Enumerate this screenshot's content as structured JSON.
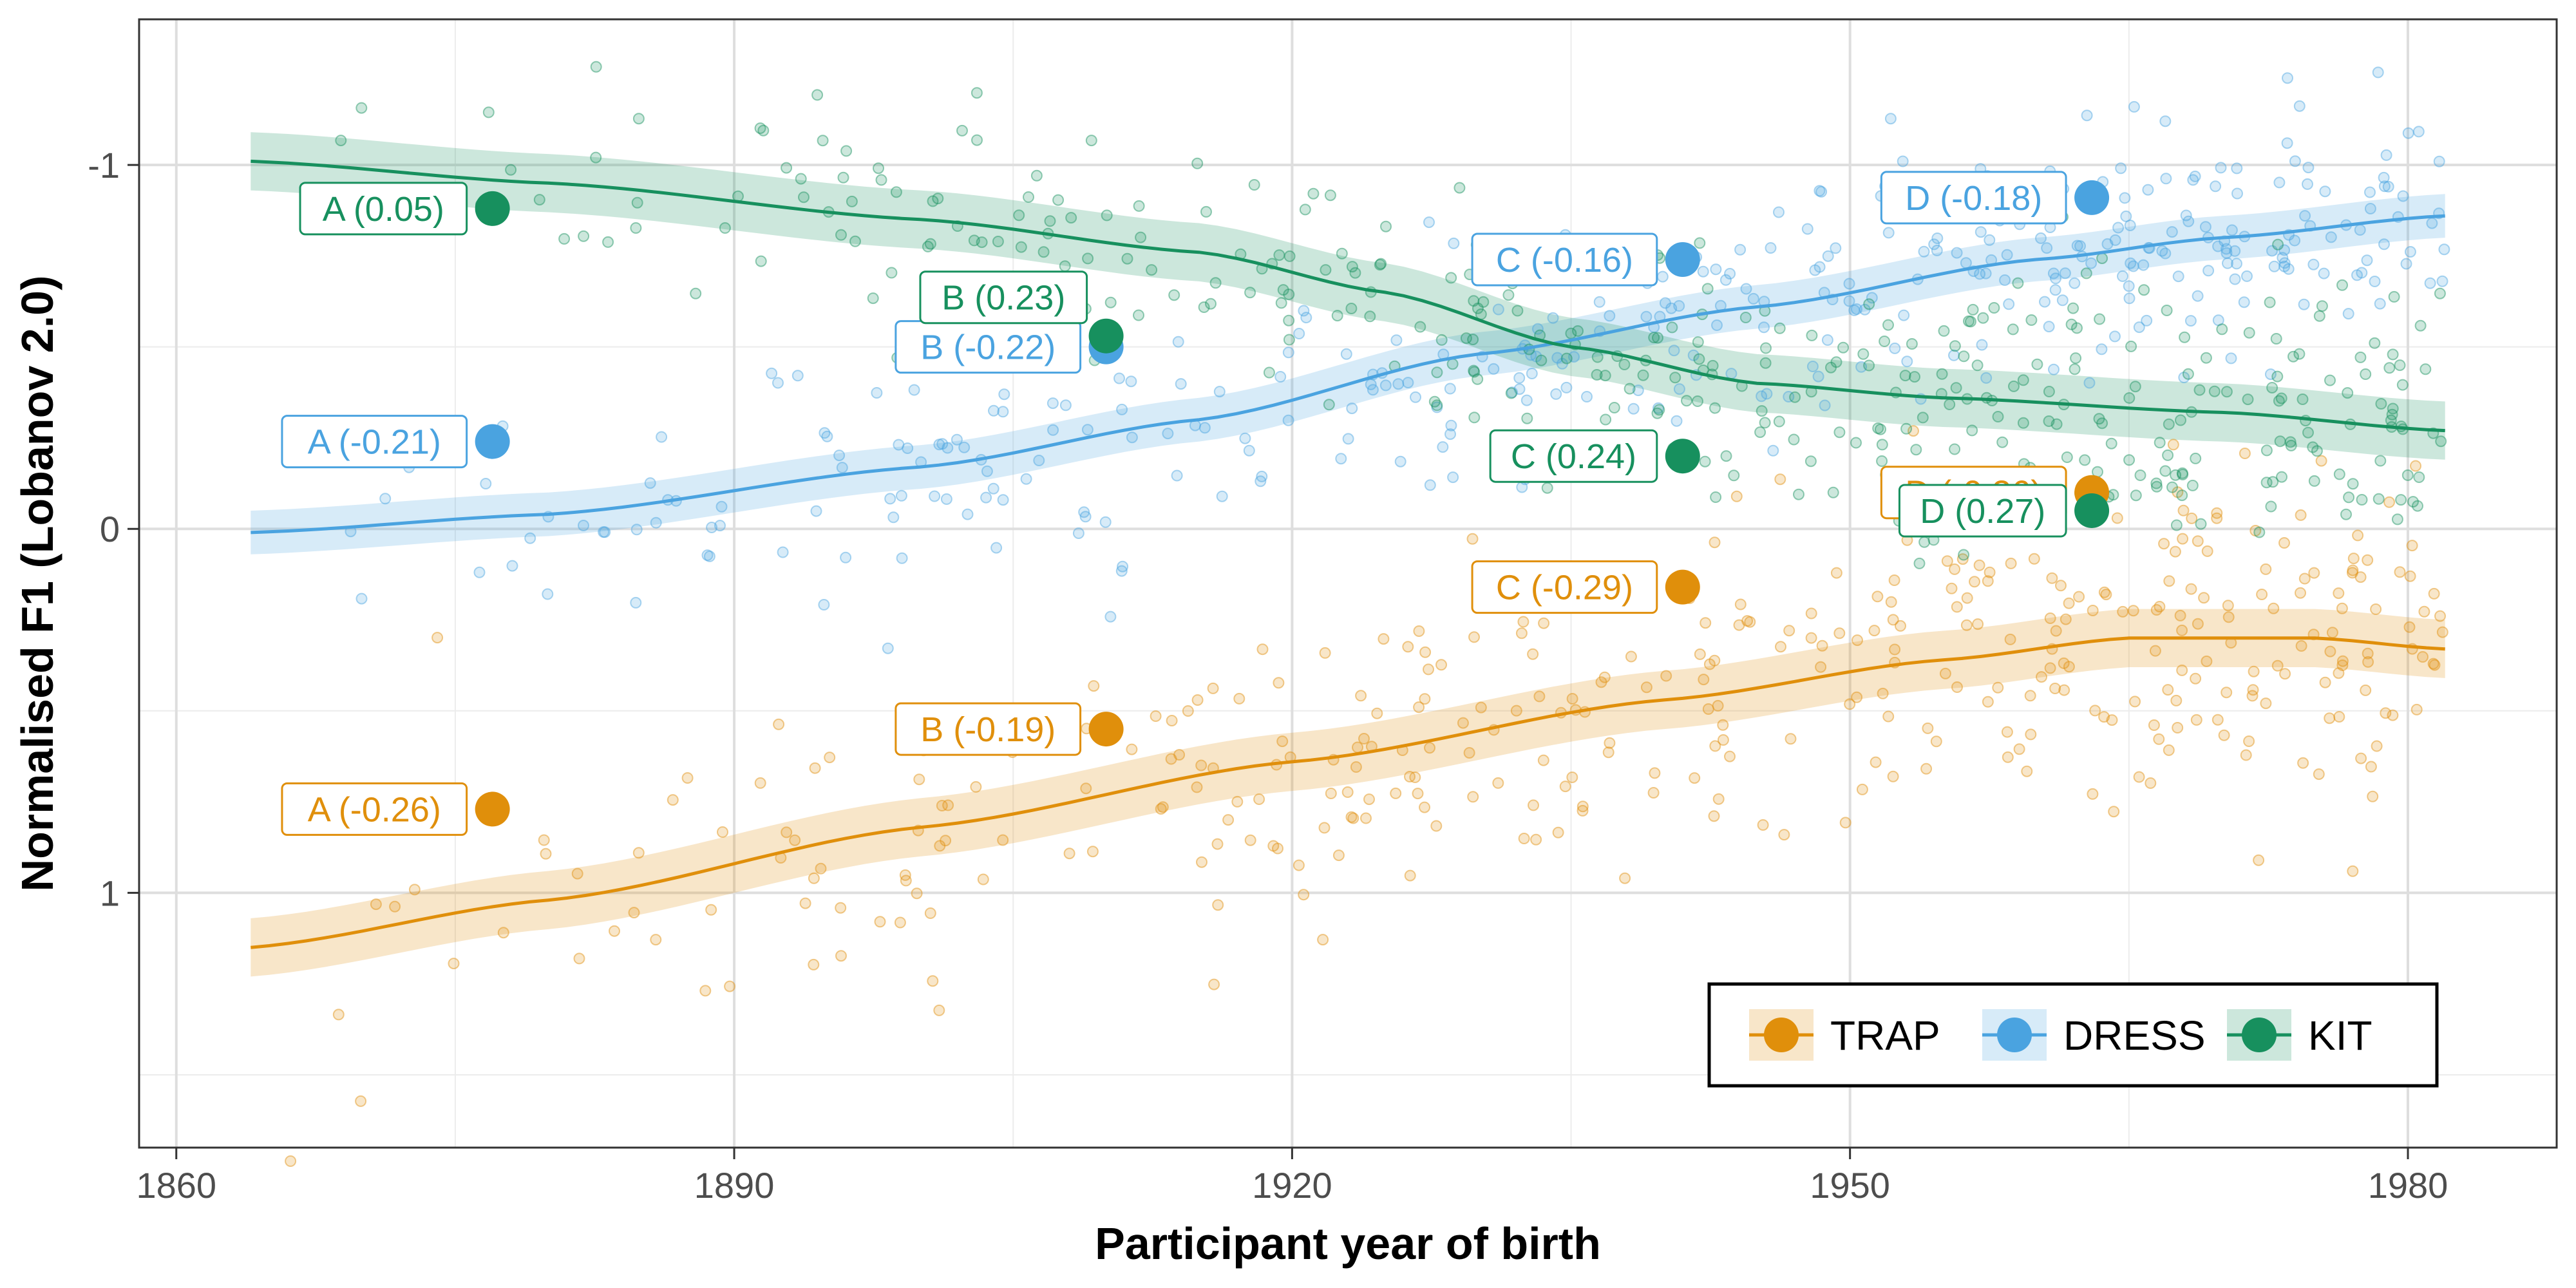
{
  "chart_data": {
    "type": "scatter",
    "title": "",
    "xlabel": "Participant year of birth",
    "ylabel": "Normalised F1 (Lobanov 2.0)",
    "xlim": [
      1858,
      1988
    ],
    "ylim": [
      -1.4,
      1.7
    ],
    "y_reversed": true,
    "xticks": [
      1860,
      1890,
      1920,
      1950,
      1980
    ],
    "yticks": [
      -1,
      0,
      1
    ],
    "grid": true,
    "legend_position": "bottom-right",
    "series": [
      {
        "name": "TRAP",
        "color": "#E08F0B",
        "smooth": [
          [
            1864,
            1.15
          ],
          [
            1880,
            1.02
          ],
          [
            1900,
            0.82
          ],
          [
            1920,
            0.64
          ],
          [
            1940,
            0.47
          ],
          [
            1955,
            0.36
          ],
          [
            1965,
            0.3
          ],
          [
            1975,
            0.3
          ],
          [
            1982,
            0.33
          ]
        ],
        "band": 0.08,
        "labelled_points": [
          {
            "x": 1877,
            "y": 0.77,
            "label": "A (-0.26)",
            "side": "left"
          },
          {
            "x": 1910,
            "y": 0.55,
            "label": "B (-0.19)",
            "side": "left"
          },
          {
            "x": 1941,
            "y": 0.16,
            "label": "C (-0.29)",
            "side": "left"
          },
          {
            "x": 1963,
            "y": -0.1,
            "label": "D (-0.36)",
            "side": "left"
          }
        ],
        "scatter": {
          "count": 380,
          "x_range": [
            1864,
            1982
          ],
          "spread": 0.22
        }
      },
      {
        "name": "DRESS",
        "color": "#4AA3E0",
        "smooth": [
          [
            1864,
            0.01
          ],
          [
            1880,
            -0.04
          ],
          [
            1900,
            -0.17
          ],
          [
            1915,
            -0.3
          ],
          [
            1930,
            -0.48
          ],
          [
            1945,
            -0.61
          ],
          [
            1960,
            -0.74
          ],
          [
            1970,
            -0.8
          ],
          [
            1982,
            -0.86
          ]
        ],
        "band": 0.06,
        "labelled_points": [
          {
            "x": 1877,
            "y": -0.24,
            "label": "A (-0.21)",
            "side": "left"
          },
          {
            "x": 1910,
            "y": -0.5,
            "label": "B (-0.22)",
            "side": "left"
          },
          {
            "x": 1941,
            "y": -0.74,
            "label": "C (-0.16)",
            "side": "left"
          },
          {
            "x": 1963,
            "y": -0.91,
            "label": "D (-0.18)",
            "side": "left"
          }
        ],
        "scatter": {
          "count": 380,
          "x_range": [
            1864,
            1982
          ],
          "spread": 0.16
        }
      },
      {
        "name": "KIT",
        "color": "#17905E",
        "smooth": [
          [
            1864,
            -1.01
          ],
          [
            1880,
            -0.95
          ],
          [
            1900,
            -0.85
          ],
          [
            1915,
            -0.76
          ],
          [
            1925,
            -0.65
          ],
          [
            1935,
            -0.5
          ],
          [
            1945,
            -0.4
          ],
          [
            1955,
            -0.36
          ],
          [
            1970,
            -0.32
          ],
          [
            1982,
            -0.27
          ]
        ],
        "band": 0.08,
        "labelled_points": [
          {
            "x": 1877,
            "y": -0.88,
            "label": "A (0.05)",
            "side": "left"
          },
          {
            "x": 1910,
            "y": -0.53,
            "label": "B (0.23)",
            "side": "above-left"
          },
          {
            "x": 1941,
            "y": -0.2,
            "label": "C (0.24)",
            "side": "left"
          },
          {
            "x": 1963,
            "y": -0.05,
            "label": "D (0.27)",
            "side": "left"
          }
        ],
        "scatter": {
          "count": 380,
          "x_range": [
            1864,
            1982
          ],
          "spread": 0.18
        }
      }
    ]
  }
}
